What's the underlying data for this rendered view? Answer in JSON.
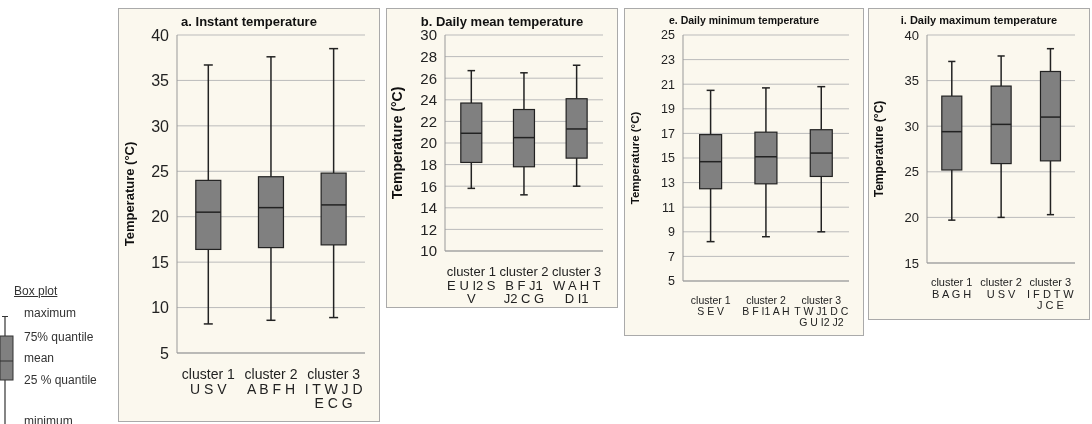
{
  "chart_data": [
    {
      "type": "other",
      "title": "Box plot",
      "annotations": [
        "maximum",
        "75% quantile",
        "mean",
        "25 % quantile",
        "minimum"
      ]
    },
    {
      "type": "box",
      "title": "a. Instant temperature",
      "ylabel": "Temperature (°C)",
      "categories": [
        "cluster 1\nU S V",
        "cluster 2\nA B F H",
        "cluster 3\nI T W J D\nE C G"
      ],
      "color": "#808080",
      "ylim": [
        5,
        40
      ],
      "yticks": [
        5,
        10,
        15,
        20,
        25,
        30,
        35,
        40
      ],
      "grid": "y",
      "legend": false,
      "boxes": [
        {
          "low": 8.2,
          "q1": 16.4,
          "median": 20.5,
          "q3": 24.0,
          "high": 36.7
        },
        {
          "low": 8.6,
          "q1": 16.6,
          "median": 21.0,
          "q3": 24.4,
          "high": 37.6
        },
        {
          "low": 8.9,
          "q1": 16.9,
          "median": 21.3,
          "q3": 24.8,
          "high": 38.5
        }
      ]
    },
    {
      "type": "box",
      "title": "b. Daily mean temperature",
      "ylabel": "Temperature (°C)",
      "categories": [
        "cluster 1\nE U I2 S\nV",
        "cluster 2\nB F J1\nJ2 C G",
        "cluster 3\nW A H T\nD I1"
      ],
      "color": "#808080",
      "ylim": [
        10,
        30
      ],
      "yticks": [
        10,
        12,
        14,
        16,
        18,
        20,
        22,
        24,
        26,
        28,
        30
      ],
      "grid": "y",
      "legend": false,
      "boxes": [
        {
          "low": 15.8,
          "q1": 18.2,
          "median": 20.9,
          "q3": 23.7,
          "high": 26.7
        },
        {
          "low": 15.2,
          "q1": 17.8,
          "median": 20.5,
          "q3": 23.1,
          "high": 26.5
        },
        {
          "low": 16.0,
          "q1": 18.6,
          "median": 21.3,
          "q3": 24.1,
          "high": 27.2
        }
      ]
    },
    {
      "type": "box",
      "title": "e. Daily minimum temperature",
      "ylabel": "Temperature (°C)",
      "categories": [
        "cluster 1\nS E V",
        "cluster 2\nB F I1 A H",
        "cluster 3\nT W J1 D C\nG U I2 J2"
      ],
      "color": "#808080",
      "ylim": [
        5,
        25
      ],
      "yticks": [
        5,
        7,
        9,
        11,
        13,
        15,
        17,
        19,
        21,
        23,
        25
      ],
      "grid": "y",
      "legend": false,
      "boxes": [
        {
          "low": 8.2,
          "q1": 12.5,
          "median": 14.7,
          "q3": 16.9,
          "high": 20.5
        },
        {
          "low": 8.6,
          "q1": 12.9,
          "median": 15.1,
          "q3": 17.1,
          "high": 20.7
        },
        {
          "low": 9.0,
          "q1": 13.5,
          "median": 15.4,
          "q3": 17.3,
          "high": 20.8
        }
      ]
    },
    {
      "type": "box",
      "title": "i. Daily maximum temperature",
      "ylabel": "Temperature (°C)",
      "categories": [
        "cluster 1\nB A G H",
        "cluster 2\nU S V",
        "cluster 3\nI F D T W\nJ C E"
      ],
      "color": "#808080",
      "ylim": [
        15,
        40
      ],
      "yticks": [
        15,
        20,
        25,
        30,
        35,
        40
      ],
      "grid": "y",
      "legend": false,
      "boxes": [
        {
          "low": 19.7,
          "q1": 25.2,
          "median": 29.4,
          "q3": 33.3,
          "high": 37.1
        },
        {
          "low": 20.0,
          "q1": 25.9,
          "median": 30.2,
          "q3": 34.4,
          "high": 37.7
        },
        {
          "low": 20.3,
          "q1": 26.2,
          "median": 31.0,
          "q3": 36.0,
          "high": 38.5
        }
      ]
    }
  ]
}
